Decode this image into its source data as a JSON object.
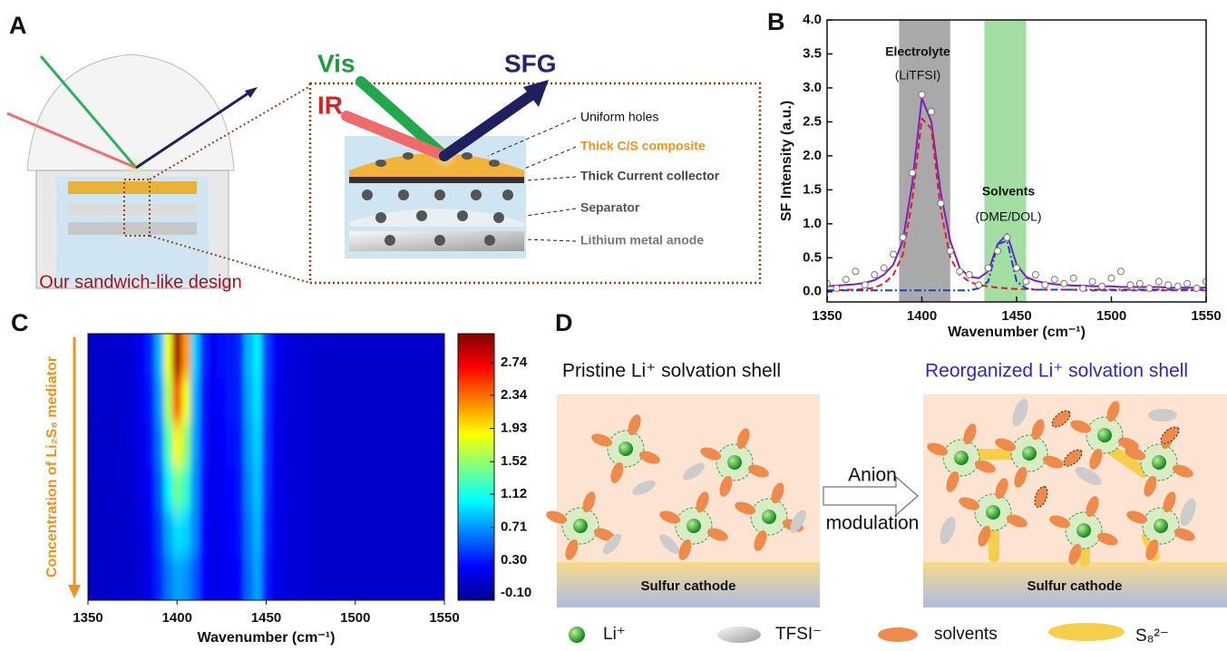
{
  "panel_labels": [
    "A",
    "B",
    "C",
    "D"
  ],
  "panel_a": {
    "beams": [
      "Vis",
      "SFG",
      "IR"
    ],
    "layers": [
      "Uniform holes",
      "Thick C/S composite",
      "Thick Current collector",
      "Separator",
      "Lithium metal anode"
    ],
    "caption": "Our sandwich-like design"
  },
  "chart_data": [
    {
      "type": "line",
      "x": [
        1350,
        1355,
        1360,
        1365,
        1370,
        1375,
        1380,
        1385,
        1390,
        1395,
        1400,
        1405,
        1410,
        1415,
        1420,
        1425,
        1430,
        1435,
        1440,
        1445,
        1450,
        1455,
        1460,
        1465,
        1470,
        1475,
        1480,
        1485,
        1490,
        1495,
        1500,
        1505,
        1510,
        1515,
        1520,
        1525,
        1530,
        1535,
        1540,
        1545,
        1550
      ],
      "series": [
        {
          "color": "#7b1fc0",
          "style": "solid",
          "values": [
            0.08,
            0.09,
            0.1,
            0.11,
            0.13,
            0.17,
            0.25,
            0.4,
            0.75,
            1.6,
            2.85,
            2.5,
            1.45,
            0.75,
            0.35,
            0.22,
            0.2,
            0.3,
            0.7,
            0.85,
            0.4,
            0.22,
            0.16,
            0.13,
            0.11,
            0.1,
            0.09,
            0.09,
            0.08,
            0.08,
            0.08,
            0.07,
            0.07,
            0.07,
            0.07,
            0.07,
            0.06,
            0.06,
            0.06,
            0.06,
            0.06
          ]
        },
        {
          "color": "#e0201e",
          "style": "dash",
          "values": [
            0.02,
            0.02,
            0.03,
            0.03,
            0.04,
            0.06,
            0.12,
            0.25,
            0.55,
            1.35,
            2.55,
            2.4,
            1.2,
            0.5,
            0.25,
            0.15,
            0.1,
            0.08,
            0.06,
            0.05,
            0.04,
            0.04,
            0.03,
            0.03,
            0.03,
            0.03,
            0.03,
            0.02,
            0.02,
            0.02,
            0.02,
            0.02,
            0.02,
            0.02,
            0.02,
            0.02,
            0.02,
            0.02,
            0.02,
            0.02,
            0.02
          ]
        },
        {
          "color": "#1f3fd0",
          "style": "dashdot",
          "values": [
            0.02,
            0.02,
            0.02,
            0.02,
            0.02,
            0.02,
            0.02,
            0.02,
            0.02,
            0.02,
            0.02,
            0.02,
            0.02,
            0.02,
            0.02,
            0.02,
            0.05,
            0.15,
            0.7,
            0.75,
            0.15,
            0.05,
            0.03,
            0.03,
            0.03,
            0.03,
            0.03,
            0.03,
            0.03,
            0.03,
            0.03,
            0.03,
            0.03,
            0.03,
            0.03,
            0.03,
            0.03,
            0.03,
            0.03,
            0.03,
            0.03
          ]
        },
        {
          "color": "#777777",
          "style": "marker",
          "values": [
            0.12,
            0.05,
            0.18,
            0.3,
            0.1,
            0.25,
            0.35,
            0.55,
            0.8,
            1.75,
            2.9,
            2.65,
            1.3,
            0.6,
            0.3,
            0.25,
            0.1,
            0.35,
            0.6,
            0.8,
            0.35,
            0.15,
            0.25,
            0.1,
            0.18,
            0.12,
            0.2,
            0.05,
            0.15,
            0.08,
            0.2,
            0.3,
            0.1,
            0.12,
            0.05,
            0.15,
            0.1,
            0.08,
            0.12,
            0.05,
            0.15
          ]
        }
      ],
      "bands": [
        {
          "range": [
            1388,
            1415
          ],
          "color": "#a9a9a9"
        },
        {
          "range": [
            1433,
            1455
          ],
          "color": "#a3dea3"
        }
      ],
      "annotations": [
        "Electrolyte",
        "(LiTFSI)",
        "Solvents",
        "(DME/DOL)"
      ],
      "xlabel": "Wavenumber (cm⁻¹)",
      "ylabel": "SF Intensity (a.u.)",
      "xlim": [
        1350,
        1550
      ],
      "xticks": [
        1350,
        1400,
        1450,
        1500,
        1550
      ],
      "ylim": [
        -0.15,
        4
      ],
      "yticks": [
        {
          "value": 0,
          "label": "0.0"
        },
        0.5,
        {
          "value": 1,
          "label": "1.0"
        },
        1.5,
        {
          "value": 2,
          "label": "2.0"
        },
        2.5,
        {
          "value": 3,
          "label": "3.0"
        },
        3.5,
        {
          "value": 4,
          "label": "4.0"
        }
      ]
    },
    {
      "type": "contour",
      "x": [
        1350,
        1355,
        1360,
        1365,
        1370,
        1375,
        1380,
        1385,
        1390,
        1395,
        1400,
        1405,
        1410,
        1415,
        1420,
        1425,
        1430,
        1435,
        1440,
        1445,
        1450,
        1455,
        1460,
        1465,
        1470,
        1475,
        1480,
        1485,
        1490,
        1495,
        1500,
        1505,
        1510,
        1515,
        1520,
        1525,
        1530,
        1535,
        1540,
        1545,
        1550
      ],
      "rows": [
        [
          0.05,
          0.05,
          0.05,
          0.06,
          0.07,
          0.1,
          0.18,
          0.35,
          0.8,
          1.8,
          3.0,
          2.2,
          0.9,
          0.35,
          0.2,
          0.25,
          0.3,
          0.35,
          0.8,
          1.0,
          0.45,
          0.2,
          0.12,
          0.1,
          0.08,
          0.07,
          0.06,
          0.06,
          0.05,
          0.05,
          0.05,
          0.05,
          0.05,
          0.05,
          0.05,
          0.05,
          0.05,
          0.05,
          0.05,
          0.05,
          0.05
        ],
        [
          0.05,
          0.05,
          0.05,
          0.06,
          0.07,
          0.09,
          0.16,
          0.3,
          0.7,
          1.6,
          2.4,
          1.8,
          0.8,
          0.3,
          0.18,
          0.22,
          0.28,
          0.33,
          0.75,
          0.95,
          0.42,
          0.18,
          0.12,
          0.1,
          0.08,
          0.07,
          0.06,
          0.06,
          0.05,
          0.05,
          0.05,
          0.05,
          0.05,
          0.05,
          0.05,
          0.05,
          0.05,
          0.05,
          0.05,
          0.05,
          0.05
        ],
        [
          0.04,
          0.04,
          0.05,
          0.05,
          0.06,
          0.08,
          0.14,
          0.26,
          0.6,
          1.3,
          1.9,
          1.5,
          0.75,
          0.28,
          0.16,
          0.2,
          0.26,
          0.3,
          0.7,
          0.9,
          0.4,
          0.17,
          0.12,
          0.1,
          0.08,
          0.07,
          0.06,
          0.06,
          0.05,
          0.05,
          0.05,
          0.05,
          0.05,
          0.05,
          0.05,
          0.05,
          0.05,
          0.05,
          0.05,
          0.05,
          0.05
        ],
        [
          0.04,
          0.04,
          0.04,
          0.05,
          0.06,
          0.07,
          0.12,
          0.22,
          0.5,
          1.0,
          1.4,
          1.2,
          0.7,
          0.26,
          0.15,
          0.18,
          0.24,
          0.28,
          0.65,
          0.85,
          0.38,
          0.16,
          0.12,
          0.1,
          0.08,
          0.07,
          0.06,
          0.06,
          0.05,
          0.05,
          0.05,
          0.05,
          0.05,
          0.05,
          0.05,
          0.05,
          0.05,
          0.05,
          0.05,
          0.05,
          0.05
        ],
        [
          0.04,
          0.04,
          0.04,
          0.04,
          0.05,
          0.06,
          0.1,
          0.18,
          0.4,
          0.75,
          0.95,
          0.9,
          0.65,
          0.24,
          0.14,
          0.16,
          0.22,
          0.26,
          0.6,
          0.8,
          0.35,
          0.15,
          0.12,
          0.1,
          0.08,
          0.07,
          0.06,
          0.06,
          0.05,
          0.05,
          0.05,
          0.05,
          0.05,
          0.05,
          0.05,
          0.05,
          0.05,
          0.05,
          0.05,
          0.05,
          0.05
        ],
        [
          0.03,
          0.03,
          0.04,
          0.04,
          0.05,
          0.06,
          0.09,
          0.16,
          0.35,
          0.6,
          0.75,
          0.7,
          0.5,
          0.22,
          0.13,
          0.15,
          0.2,
          0.24,
          0.55,
          0.75,
          0.32,
          0.14,
          0.12,
          0.1,
          0.08,
          0.07,
          0.06,
          0.06,
          0.05,
          0.05,
          0.05,
          0.05,
          0.05,
          0.05,
          0.05,
          0.05,
          0.05,
          0.05,
          0.05,
          0.05,
          0.05
        ]
      ],
      "colormap": "jet",
      "xlabel": "Wavenumber (cm⁻¹)",
      "ylabel": "Concentration of Li₂S₈ mediator",
      "ylabel_color": "#f0901e",
      "xlim": [
        1350,
        1550
      ],
      "xticks": [
        1350,
        1400,
        1450,
        1500,
        1550
      ],
      "zlim": [
        -0.19,
        3.1
      ],
      "zticks": [
        {
          "value": -0.1,
          "label": "-0.10"
        },
        {
          "value": 0.3,
          "label": "0.30"
        },
        {
          "value": 0.71,
          "label": "0.71"
        },
        {
          "value": 1.12,
          "label": "1.12"
        },
        {
          "value": 1.52,
          "label": "1.52"
        },
        {
          "value": 1.93,
          "label": "1.93"
        },
        {
          "value": 2.34,
          "label": "2.34"
        },
        {
          "value": 2.74,
          "label": "2.74"
        }
      ]
    }
  ],
  "panel_d": {
    "left_title": "Pristine Li⁺ solvation shell",
    "right_title": "Reorganized Li⁺ solvation shell",
    "arrow_label": [
      "Anion",
      "modulation"
    ],
    "cathode": [
      "Sulfur cathode",
      "Sulfur cathode"
    ],
    "legend": [
      "Li⁺",
      "TFSI⁻",
      "solvents",
      "S₈²⁻"
    ]
  }
}
